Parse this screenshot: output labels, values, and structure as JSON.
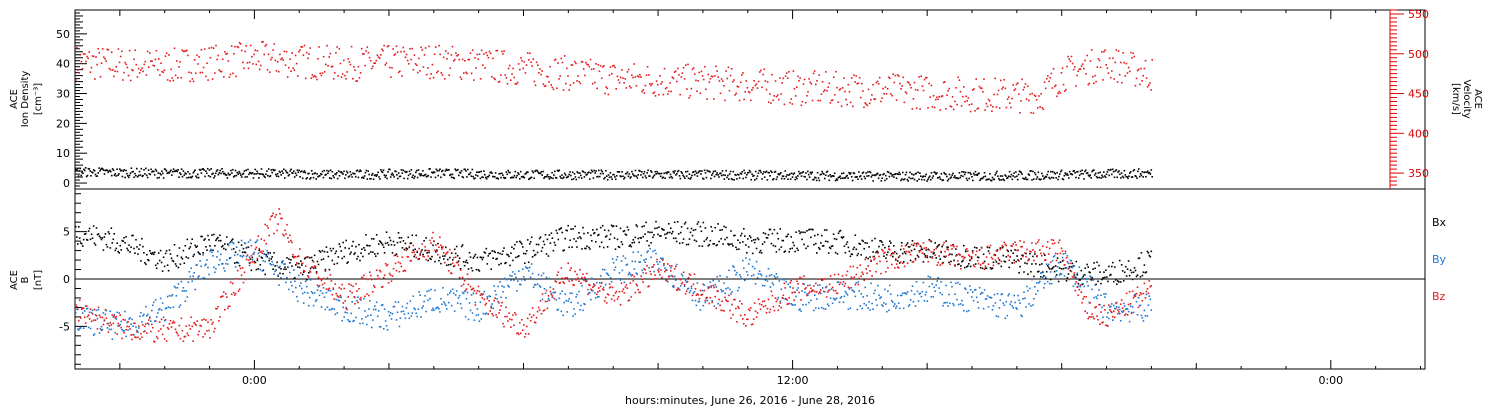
{
  "colors": {
    "black": "#000000",
    "red": "#e41a1c",
    "blue": "#1f78d1",
    "axis_red": "#e00000"
  },
  "chart_data": [
    {
      "type": "scatter",
      "xlabel": "hours:minutes, June 26, 2016 - June 28, 2016",
      "x_ticks": [
        "0:00",
        "12:00",
        "0:00"
      ],
      "x_tick_hours": [
        0,
        12,
        24
      ],
      "xlim_hours": [
        -4.0,
        26.1
      ],
      "data_end_hours": 20.0,
      "left_axis": {
        "label_lines": [
          "ACE",
          "Ion Density"
        ],
        "unit": "[cm⁻³]",
        "ylim": [
          -2,
          58
        ],
        "ticks": [
          0,
          10,
          20,
          30,
          40,
          50
        ]
      },
      "right_axis": {
        "label_lines": [
          "ACE",
          "Velocity"
        ],
        "unit": "[km/s]",
        "ylim": [
          330,
          555
        ],
        "ticks": [
          350,
          400,
          450,
          500,
          550
        ]
      },
      "series": [
        {
          "name": "Ion Density",
          "axis": "left",
          "color": "black",
          "x": [
            -4,
            -2,
            0,
            2,
            4,
            6,
            8,
            10,
            12,
            14,
            16,
            18,
            20
          ],
          "y": [
            4,
            3.5,
            3.5,
            3,
            3.5,
            3,
            3,
            3,
            2.8,
            2.5,
            2.5,
            3,
            3.5
          ]
        },
        {
          "name": "Velocity",
          "axis": "right",
          "color": "red",
          "x": [
            -4,
            -2,
            0,
            2,
            4,
            6,
            8,
            10,
            12,
            14,
            16,
            17.5,
            18,
            19,
            20
          ],
          "y": [
            490,
            485,
            495,
            488,
            492,
            482,
            470,
            465,
            458,
            455,
            450,
            448,
            475,
            490,
            475
          ]
        }
      ]
    },
    {
      "type": "scatter",
      "ylabel_lines": [
        "ACE",
        "B"
      ],
      "unit": "[nT]",
      "ylim": [
        -9.5,
        9.5
      ],
      "ticks": [
        -5,
        0,
        5
      ],
      "zero_line": true,
      "legend": [
        "Bx",
        "By",
        "Bz"
      ],
      "series": [
        {
          "name": "Bx",
          "color": "black",
          "x": [
            -4,
            -3,
            -2,
            -1,
            0,
            1,
            2,
            3,
            4,
            5,
            6,
            7,
            8,
            9,
            10,
            10.5,
            11,
            12,
            13,
            14,
            15,
            16,
            17,
            18,
            19,
            20
          ],
          "y": [
            5,
            4,
            2,
            4,
            2,
            1,
            3,
            4,
            3,
            2,
            3,
            4.5,
            4.5,
            5,
            4.8,
            4.5,
            4,
            4.2,
            4,
            3,
            3,
            2.5,
            2,
            1,
            0.5,
            2
          ]
        },
        {
          "name": "By",
          "color": "blue",
          "x": [
            -4,
            -3,
            -2,
            -1,
            0,
            1,
            2,
            3,
            4,
            5,
            6,
            7,
            8,
            9,
            10,
            11,
            12,
            13,
            14,
            15,
            16,
            17,
            18,
            19,
            20
          ],
          "y": [
            -4,
            -5,
            -3,
            2,
            3,
            -1,
            -3,
            -4,
            -2,
            -3,
            1,
            -3,
            1,
            2,
            -2,
            1,
            -2,
            -1.5,
            -2,
            -1,
            -2,
            -3,
            2,
            -3,
            -3
          ]
        },
        {
          "name": "Bz",
          "color": "red",
          "x": [
            -4,
            -3,
            -2,
            -1,
            0,
            0.5,
            1,
            2,
            3,
            4,
            5,
            6,
            7,
            8,
            9,
            10,
            11,
            12,
            13,
            14,
            15,
            16,
            17,
            18,
            18.5,
            19,
            20
          ],
          "y": [
            -3,
            -5,
            -5.5,
            -5,
            3,
            6.5,
            2,
            -2,
            1,
            4,
            -2,
            -5,
            1,
            -2,
            1,
            -1,
            -4,
            -1,
            -0.5,
            2,
            3,
            2,
            3,
            3,
            -3,
            -4,
            -1
          ]
        }
      ]
    }
  ]
}
